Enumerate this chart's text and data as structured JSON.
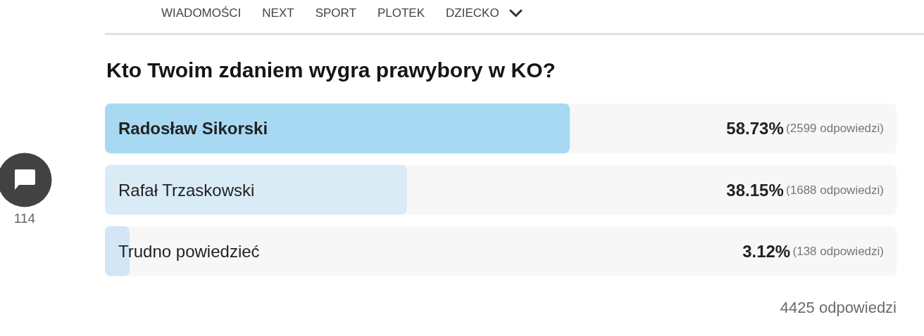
{
  "chart_data": {
    "type": "bar",
    "orientation": "horizontal",
    "title": "Kto Twoim zdaniem wygra prawybory w KO?",
    "categories": [
      "Radosław Sikorski",
      "Rafał Trzaskowski",
      "Trudno powiedzieć"
    ],
    "values": [
      58.73,
      38.15,
      3.12
    ],
    "colors": [
      "#a8d9f3",
      "#d9ecf6",
      "#d4e6f5"
    ],
    "xlim": [
      0,
      100
    ],
    "tick_labels": "y",
    "value_labels": [
      "58.73%",
      "38.15%",
      "3.12%"
    ],
    "annotations": [
      "WIADOMOŚCI",
      "NEXT",
      "SPORT",
      "PLOTEK",
      "DZIECKO",
      "114",
      "(2599 odpowiedzi)",
      "(1688 odpowiedzi)",
      "(138 odpowiedzi)",
      "4425 odpowiedzi"
    ]
  }
}
